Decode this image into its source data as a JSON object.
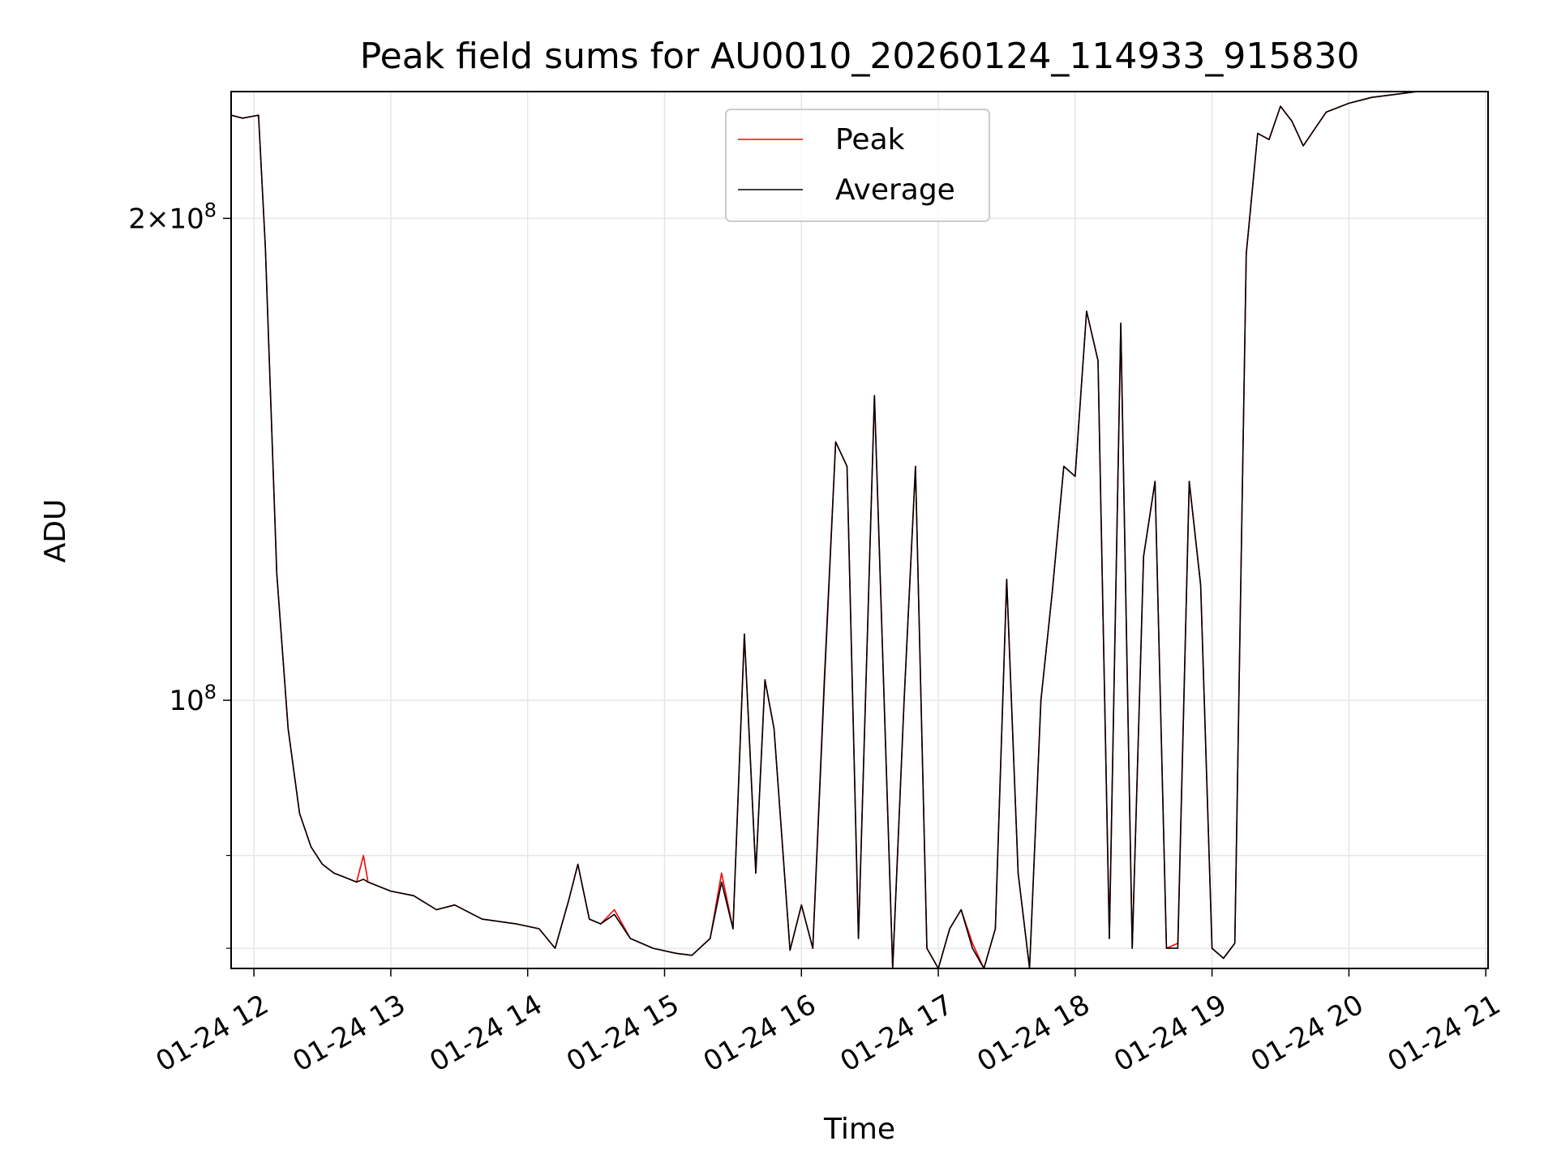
{
  "chart_data": {
    "type": "line",
    "title": "Peak field sums for AU0010_20260124_114933_915830",
    "xlabel": "Time",
    "ylabel": "ADU",
    "y_scale": "log",
    "ylim": [
      68000000,
      240000000
    ],
    "xlim": [
      "2026-01-24 11:50",
      "2026-01-24 21:01"
    ],
    "x_ticks": [
      {
        "value": "2026-01-24 12:00",
        "label": "01-24 12"
      },
      {
        "value": "2026-01-24 13:00",
        "label": "01-24 13"
      },
      {
        "value": "2026-01-24 14:00",
        "label": "01-24 14"
      },
      {
        "value": "2026-01-24 15:00",
        "label": "01-24 15"
      },
      {
        "value": "2026-01-24 16:00",
        "label": "01-24 16"
      },
      {
        "value": "2026-01-24 17:00",
        "label": "01-24 17"
      },
      {
        "value": "2026-01-24 18:00",
        "label": "01-24 18"
      },
      {
        "value": "2026-01-24 19:00",
        "label": "01-24 19"
      },
      {
        "value": "2026-01-24 20:00",
        "label": "01-24 20"
      },
      {
        "value": "2026-01-24 21:00",
        "label": "01-24 21"
      }
    ],
    "y_ticks_major": [
      {
        "value": 100000000,
        "base": "10",
        "exp": "8",
        "prefix": ""
      },
      {
        "value": 200000000,
        "base": "10",
        "exp": "8",
        "prefix": "2×"
      }
    ],
    "y_ticks_minor": [
      70000000,
      80000000
    ],
    "grid": true,
    "legend_position": "top-center",
    "series": [
      {
        "name": "Peak",
        "color": "#ff0000",
        "x": [
          "2026-01-24 11:50",
          "2026-01-24 11:55",
          "2026-01-24 12:02",
          "2026-01-24 12:05",
          "2026-01-24 12:10",
          "2026-01-24 12:15",
          "2026-01-24 12:20",
          "2026-01-24 12:25",
          "2026-01-24 12:30",
          "2026-01-24 12:35",
          "2026-01-24 12:40",
          "2026-01-24 12:45",
          "2026-01-24 12:48",
          "2026-01-24 12:50",
          "2026-01-24 13:00",
          "2026-01-24 13:10",
          "2026-01-24 13:20",
          "2026-01-24 13:28",
          "2026-01-24 13:40",
          "2026-01-24 13:55",
          "2026-01-24 14:05",
          "2026-01-24 14:12",
          "2026-01-24 14:18",
          "2026-01-24 14:22",
          "2026-01-24 14:27",
          "2026-01-24 14:32",
          "2026-01-24 14:38",
          "2026-01-24 14:45",
          "2026-01-24 14:55",
          "2026-01-24 15:05",
          "2026-01-24 15:12",
          "2026-01-24 15:20",
          "2026-01-24 15:25",
          "2026-01-24 15:30",
          "2026-01-24 15:35",
          "2026-01-24 15:40",
          "2026-01-24 15:44",
          "2026-01-24 15:48",
          "2026-01-24 15:55",
          "2026-01-24 16:00",
          "2026-01-24 16:05",
          "2026-01-24 16:10",
          "2026-01-24 16:15",
          "2026-01-24 16:20",
          "2026-01-24 16:25",
          "2026-01-24 16:32",
          "2026-01-24 16:40",
          "2026-01-24 16:45",
          "2026-01-24 16:50",
          "2026-01-24 16:55",
          "2026-01-24 17:00",
          "2026-01-24 17:05",
          "2026-01-24 17:10",
          "2026-01-24 17:15",
          "2026-01-24 17:20",
          "2026-01-24 17:25",
          "2026-01-24 17:30",
          "2026-01-24 17:35",
          "2026-01-24 17:40",
          "2026-01-24 17:45",
          "2026-01-24 17:50",
          "2026-01-24 17:55",
          "2026-01-24 18:00",
          "2026-01-24 18:05",
          "2026-01-24 18:10",
          "2026-01-24 18:15",
          "2026-01-24 18:20",
          "2026-01-24 18:25",
          "2026-01-24 18:30",
          "2026-01-24 18:35",
          "2026-01-24 18:40",
          "2026-01-24 18:45",
          "2026-01-24 18:50",
          "2026-01-24 18:55",
          "2026-01-24 19:00",
          "2026-01-24 19:05",
          "2026-01-24 19:10",
          "2026-01-24 19:15",
          "2026-01-24 19:20",
          "2026-01-24 19:25",
          "2026-01-24 19:30",
          "2026-01-24 19:35",
          "2026-01-24 19:40",
          "2026-01-24 19:50",
          "2026-01-24 20:00",
          "2026-01-24 20:05",
          "2026-01-24 20:10",
          "2026-01-24 20:20",
          "2026-01-24 20:30",
          "2026-01-24 20:45",
          "2026-01-24 21:01"
        ],
        "y": [
          232000000,
          231000000,
          232000000,
          192000000,
          120000000,
          96000000,
          85000000,
          81000000,
          79000000,
          78000000,
          77500000,
          77000000,
          80000000,
          77000000,
          76000000,
          75500000,
          74000000,
          74500000,
          73000000,
          72500000,
          72000000,
          70000000,
          75000000,
          79000000,
          73000000,
          72500000,
          74000000,
          71000000,
          70000000,
          69500000,
          69300000,
          71000000,
          78000000,
          72000000,
          110000000,
          78000000,
          103000000,
          96000000,
          69800000,
          74500000,
          70000000,
          103000000,
          145000000,
          140000000,
          71000000,
          155000000,
          67200000,
          100000000,
          140000000,
          70000000,
          68000000,
          72000000,
          74000000,
          70500000,
          67000000,
          72000000,
          119000000,
          78000000,
          68000000,
          100000000,
          117000000,
          140000000,
          138000000,
          175000000,
          163000000,
          71000000,
          172000000,
          70000000,
          123000000,
          137000000,
          70000000,
          70500000,
          137000000,
          118000000,
          70000000,
          69000000,
          70500000,
          190000000,
          226000000,
          224000000,
          235000000,
          230000000,
          222000000,
          233000000,
          236000000,
          237000000,
          238000000,
          239000000,
          240000000,
          240000000,
          241000000
        ]
      },
      {
        "name": "Average",
        "color": "#000000",
        "x": [
          "2026-01-24 11:50",
          "2026-01-24 11:55",
          "2026-01-24 12:02",
          "2026-01-24 12:05",
          "2026-01-24 12:10",
          "2026-01-24 12:15",
          "2026-01-24 12:20",
          "2026-01-24 12:25",
          "2026-01-24 12:30",
          "2026-01-24 12:35",
          "2026-01-24 12:40",
          "2026-01-24 12:45",
          "2026-01-24 12:48",
          "2026-01-24 12:50",
          "2026-01-24 13:00",
          "2026-01-24 13:10",
          "2026-01-24 13:20",
          "2026-01-24 13:28",
          "2026-01-24 13:40",
          "2026-01-24 13:55",
          "2026-01-24 14:05",
          "2026-01-24 14:12",
          "2026-01-24 14:18",
          "2026-01-24 14:22",
          "2026-01-24 14:27",
          "2026-01-24 14:32",
          "2026-01-24 14:38",
          "2026-01-24 14:45",
          "2026-01-24 14:55",
          "2026-01-24 15:05",
          "2026-01-24 15:12",
          "2026-01-24 15:20",
          "2026-01-24 15:25",
          "2026-01-24 15:30",
          "2026-01-24 15:35",
          "2026-01-24 15:40",
          "2026-01-24 15:44",
          "2026-01-24 15:48",
          "2026-01-24 15:55",
          "2026-01-24 16:00",
          "2026-01-24 16:05",
          "2026-01-24 16:10",
          "2026-01-24 16:15",
          "2026-01-24 16:20",
          "2026-01-24 16:25",
          "2026-01-24 16:32",
          "2026-01-24 16:40",
          "2026-01-24 16:45",
          "2026-01-24 16:50",
          "2026-01-24 16:55",
          "2026-01-24 17:00",
          "2026-01-24 17:05",
          "2026-01-24 17:10",
          "2026-01-24 17:15",
          "2026-01-24 17:20",
          "2026-01-24 17:25",
          "2026-01-24 17:30",
          "2026-01-24 17:35",
          "2026-01-24 17:40",
          "2026-01-24 17:45",
          "2026-01-24 17:50",
          "2026-01-24 17:55",
          "2026-01-24 18:00",
          "2026-01-24 18:05",
          "2026-01-24 18:10",
          "2026-01-24 18:15",
          "2026-01-24 18:20",
          "2026-01-24 18:25",
          "2026-01-24 18:30",
          "2026-01-24 18:35",
          "2026-01-24 18:40",
          "2026-01-24 18:45",
          "2026-01-24 18:50",
          "2026-01-24 18:55",
          "2026-01-24 19:00",
          "2026-01-24 19:05",
          "2026-01-24 19:10",
          "2026-01-24 19:15",
          "2026-01-24 19:20",
          "2026-01-24 19:25",
          "2026-01-24 19:30",
          "2026-01-24 19:35",
          "2026-01-24 19:40",
          "2026-01-24 19:50",
          "2026-01-24 20:00",
          "2026-01-24 20:05",
          "2026-01-24 20:10",
          "2026-01-24 20:20",
          "2026-01-24 20:30",
          "2026-01-24 20:45",
          "2026-01-24 21:01"
        ],
        "y": [
          232000000,
          231000000,
          232000000,
          192000000,
          120000000,
          96000000,
          85000000,
          81000000,
          79000000,
          78000000,
          77500000,
          77000000,
          77300000,
          77000000,
          76000000,
          75500000,
          74000000,
          74500000,
          73000000,
          72500000,
          72000000,
          70000000,
          75000000,
          79000000,
          73000000,
          72500000,
          73500000,
          71000000,
          70000000,
          69500000,
          69300000,
          71000000,
          77000000,
          72000000,
          110000000,
          78000000,
          103000000,
          96000000,
          69800000,
          74500000,
          70000000,
          102000000,
          145000000,
          140000000,
          71000000,
          155000000,
          67200000,
          100000000,
          140000000,
          70000000,
          68000000,
          72000000,
          74000000,
          70000000,
          67000000,
          72000000,
          119000000,
          78000000,
          68000000,
          100000000,
          117000000,
          140000000,
          138000000,
          175000000,
          163000000,
          71000000,
          172000000,
          70000000,
          123000000,
          137000000,
          70000000,
          70000000,
          137000000,
          118000000,
          70000000,
          69000000,
          70500000,
          190000000,
          226000000,
          224000000,
          235000000,
          230000000,
          222000000,
          233000000,
          236000000,
          237000000,
          238000000,
          239000000,
          240000000,
          240000000,
          241000000
        ]
      }
    ]
  }
}
